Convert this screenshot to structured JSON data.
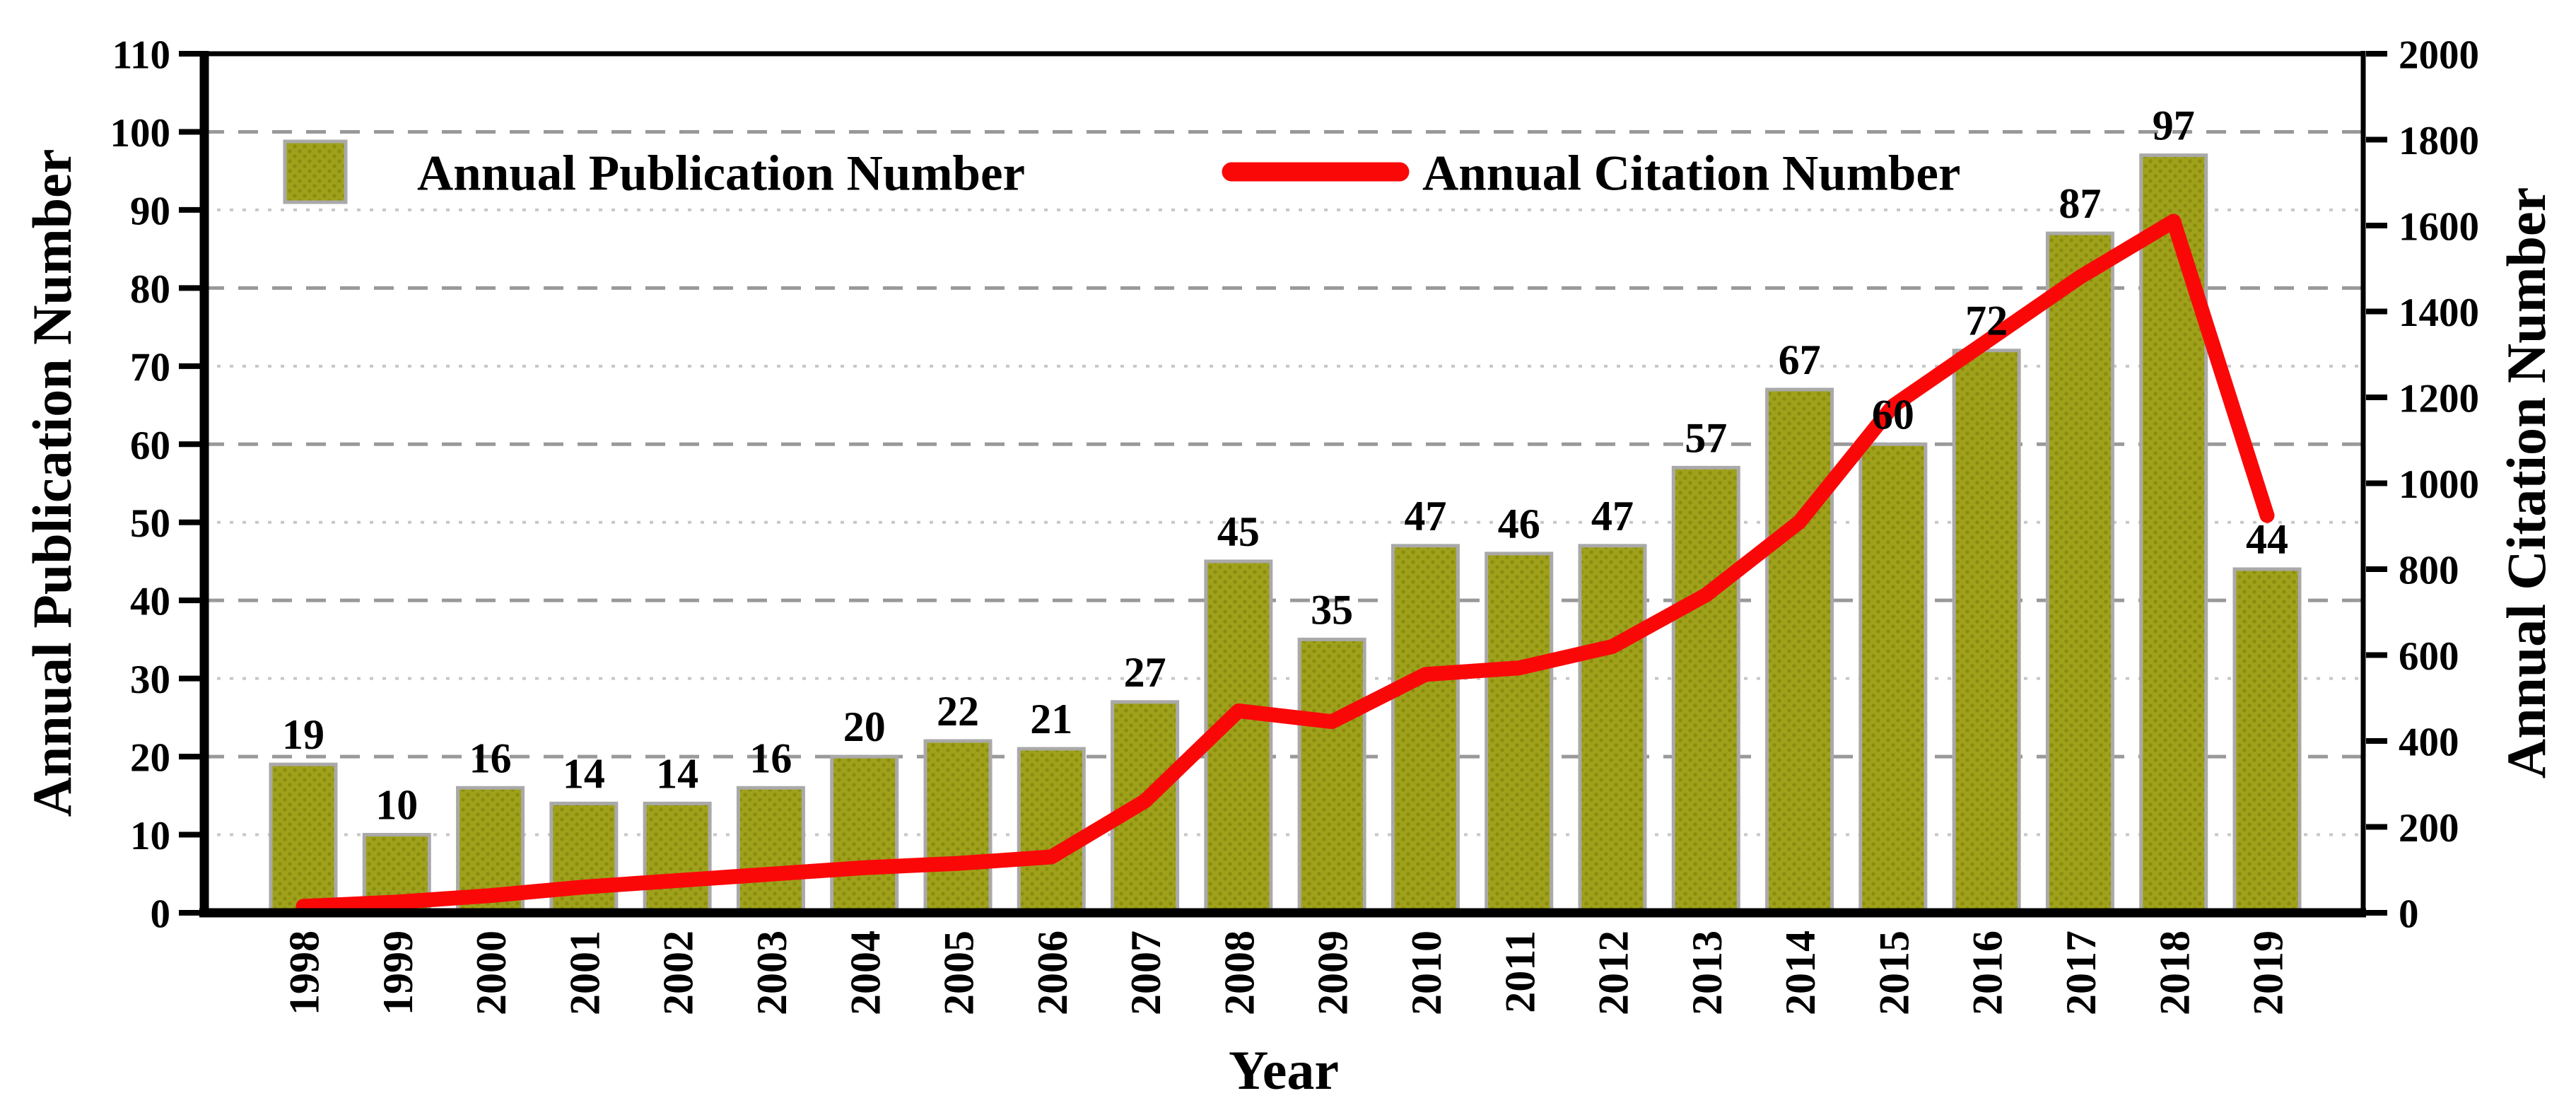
{
  "figure": {
    "legend": {
      "publication_label": "Annual Publication Number",
      "citation_label": "Annual Citation Number"
    },
    "axes": {
      "left_title": "Annual Publication Number",
      "right_title": "Annual Citation Number",
      "x_title": "Year",
      "left_ticks": [
        0,
        10,
        20,
        30,
        40,
        50,
        60,
        70,
        80,
        90,
        100,
        110
      ],
      "right_ticks": [
        0,
        200,
        400,
        600,
        800,
        1000,
        1200,
        1400,
        1600,
        1800,
        2000
      ]
    },
    "colors": {
      "bar_fill": "#9fa11b",
      "bar_dot": "#8a8c10",
      "bar_border": "#a9a9a9",
      "line_red": "#fa0808",
      "grid_major": "#999999",
      "grid_minor": "#c7c7c7",
      "axis_black": "#000000",
      "background": "#ffffff"
    }
  },
  "chart_data": {
    "type": "bar",
    "subtype": "bar+line dual axis",
    "categories": [
      1998,
      1999,
      2000,
      2001,
      2002,
      2003,
      2004,
      2005,
      2006,
      2007,
      2008,
      2009,
      2010,
      2011,
      2012,
      2013,
      2014,
      2015,
      2016,
      2017,
      2018,
      2019
    ],
    "series": [
      {
        "name": "Annual Publication Number",
        "type": "bar",
        "axis": "left",
        "values": [
          19,
          10,
          16,
          14,
          14,
          16,
          20,
          22,
          21,
          27,
          45,
          35,
          47,
          46,
          47,
          57,
          67,
          60,
          72,
          87,
          97,
          44
        ]
      },
      {
        "name": "Annual Citation Number",
        "type": "line",
        "axis": "right",
        "values": [
          15,
          25,
          40,
          60,
          75,
          90,
          105,
          115,
          130,
          260,
          470,
          445,
          555,
          570,
          620,
          740,
          910,
          1180,
          1330,
          1480,
          1610,
          925
        ]
      }
    ],
    "title": "",
    "xlabel": "Year",
    "ylabel_left": "Annual Publication Number",
    "ylabel_right": "Annual Citation Number",
    "ylim_left": [
      0,
      110
    ],
    "ylim_right": [
      0,
      2000
    ],
    "grid": "horizontal, alternating dashed (20,40,60,80,100) and dotted (10,30,50,70,90)",
    "legend_position": "inside top-left",
    "bar_labels_shown": true
  }
}
